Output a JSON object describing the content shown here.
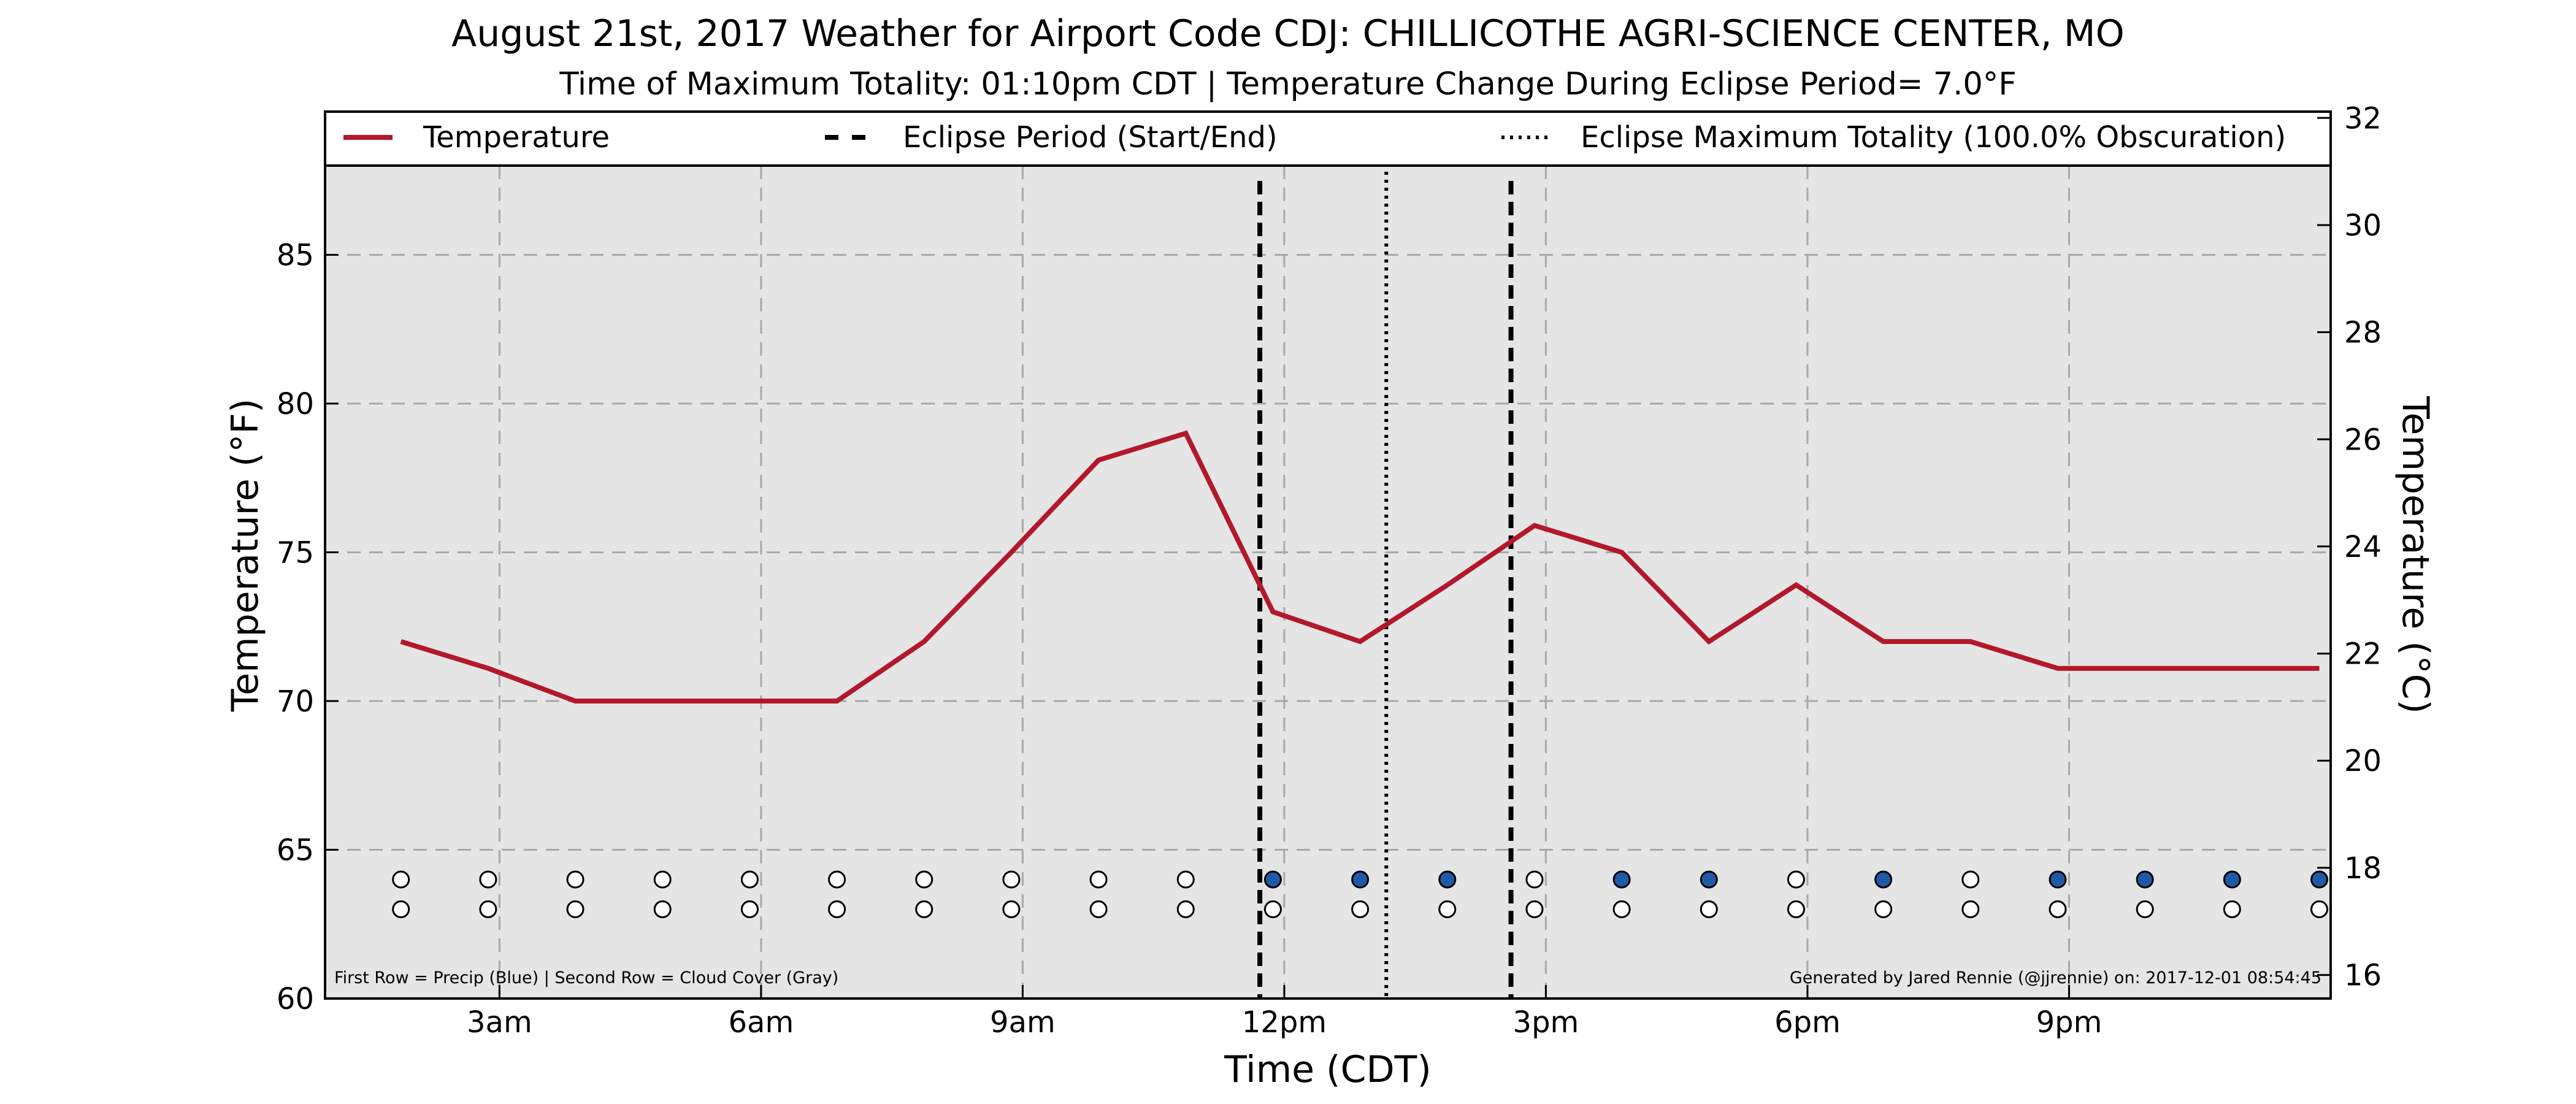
{
  "chart_data": {
    "type": "line",
    "title": "August 21st, 2017 Weather for Airport Code CDJ: CHILLICOTHE AGRI-SCIENCE CENTER, MO",
    "subtitle": "Time of Maximum Totality: 01:10pm CDT | Temperature Change During Eclipse Period= 7.0°F",
    "xlabel": "Time (CDT)",
    "ylabel": "Temperature (°F)",
    "ylabel_right": "Temperature (°C)",
    "xlim": [
      1.0,
      24.0
    ],
    "ylim": [
      60,
      88
    ],
    "ylim_right": [
      15.56,
      31.11
    ],
    "grid": true,
    "legend_placement": "top",
    "x_ticks": [
      {
        "x": 3,
        "label": "3am"
      },
      {
        "x": 6,
        "label": "6am"
      },
      {
        "x": 9,
        "label": "9am"
      },
      {
        "x": 12,
        "label": "12pm"
      },
      {
        "x": 15,
        "label": "3pm"
      },
      {
        "x": 18,
        "label": "6pm"
      },
      {
        "x": 21,
        "label": "9pm"
      }
    ],
    "y_ticks": [
      60,
      65,
      70,
      75,
      80,
      85
    ],
    "y_ticks_right": [
      16,
      18,
      20,
      22,
      24,
      26,
      28,
      30,
      32
    ],
    "series": [
      {
        "name": "Temperature",
        "color": "#b2182b",
        "x": [
          1.87,
          2.87,
          3.87,
          4.87,
          5.87,
          6.87,
          7.87,
          8.87,
          9.87,
          10.87,
          11.87,
          12.87,
          13.87,
          14.87,
          15.87,
          16.87,
          17.87,
          18.87,
          19.87,
          20.87,
          21.87,
          22.87,
          23.87
        ],
        "values": [
          72,
          71.1,
          70,
          70,
          70,
          70,
          72,
          75,
          78.1,
          79,
          73,
          72,
          73.9,
          75.9,
          75,
          72,
          73.9,
          72,
          72,
          71.1,
          71.1,
          71.1,
          71.1
        ]
      }
    ],
    "eclipse_period": {
      "label": "Eclipse Period (Start/End)",
      "start": 11.72,
      "end": 14.6
    },
    "max_totality": {
      "label": "Eclipse Maximum Totality (100.0% Obscuration)",
      "x": 13.17
    },
    "precip_row": {
      "y": 64,
      "x": [
        1.87,
        2.87,
        3.87,
        4.87,
        5.87,
        6.87,
        7.87,
        8.87,
        9.87,
        10.87,
        11.87,
        12.87,
        13.87,
        14.87,
        15.87,
        16.87,
        17.87,
        18.87,
        19.87,
        20.87,
        21.87,
        22.87,
        23.87
      ],
      "precip": [
        0,
        0,
        0,
        0,
        0,
        0,
        0,
        0,
        0,
        0,
        1,
        1,
        1,
        0,
        1,
        1,
        0,
        1,
        0,
        1,
        1,
        1,
        1
      ],
      "color": "#1f5aa6"
    },
    "cloud_row": {
      "y": 63,
      "x": [
        1.87,
        2.87,
        3.87,
        4.87,
        5.87,
        6.87,
        7.87,
        8.87,
        9.87,
        10.87,
        11.87,
        12.87,
        13.87,
        14.87,
        15.87,
        16.87,
        17.87,
        18.87,
        19.87,
        20.87,
        21.87,
        22.87,
        23.87
      ],
      "cover": [
        0,
        0,
        0,
        0,
        0,
        0,
        0,
        0,
        0,
        0,
        0,
        0,
        0,
        0,
        0,
        0,
        0,
        0,
        0,
        0,
        0,
        0,
        0
      ]
    },
    "footnote_left": "First Row = Precip (Blue) | Second Row = Cloud Cover (Gray)",
    "footnote_right": "Generated by Jared Rennie (@jjrennie) on: 2017-12-01 08:54:45"
  }
}
